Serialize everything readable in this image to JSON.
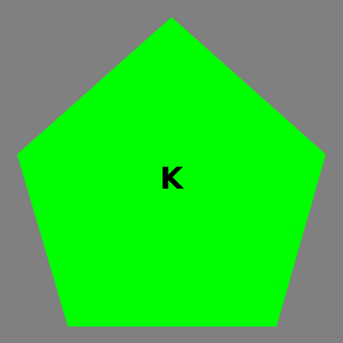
{
  "canvas": {
    "background_color": "#808080"
  },
  "shape": {
    "type": "pentagon",
    "fill_color": "#00ff00",
    "label": "K",
    "label_color": "#000000"
  }
}
